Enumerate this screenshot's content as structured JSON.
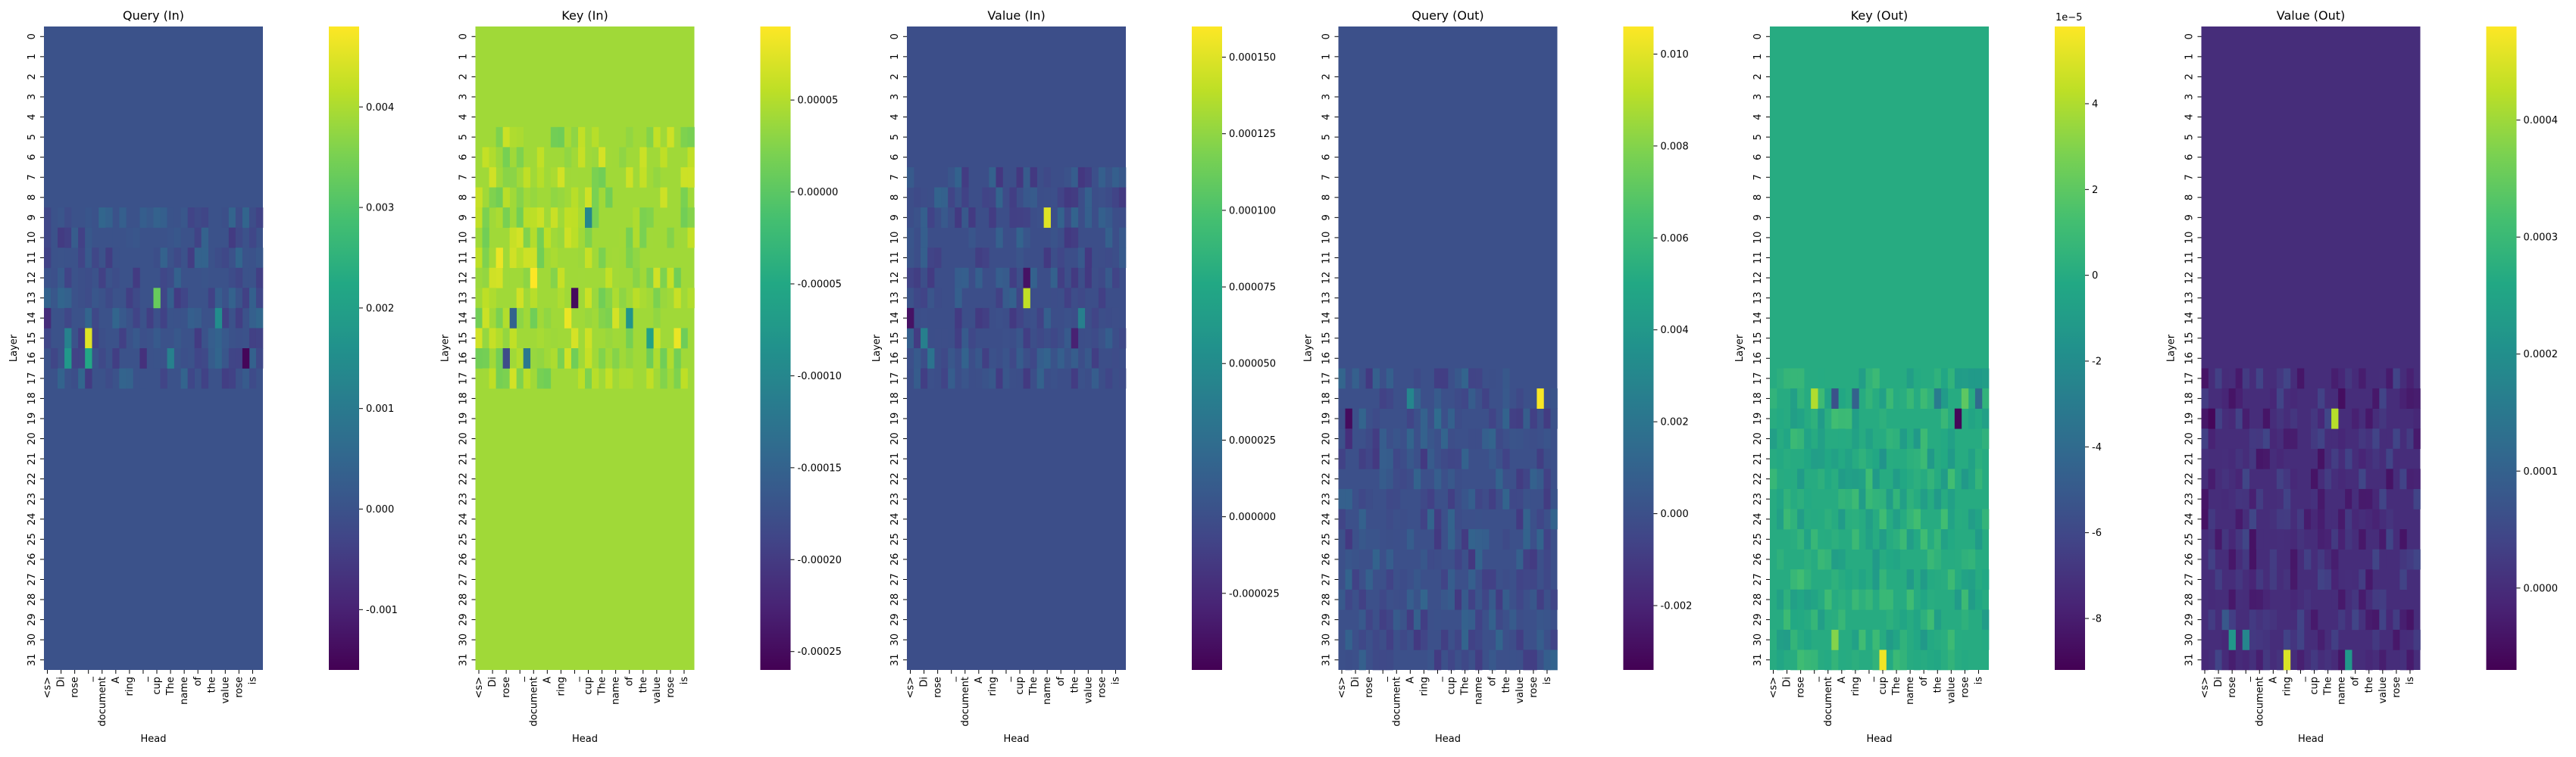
{
  "chart_data": [
    {
      "type": "heatmap",
      "title": "Query (In)",
      "xlabel": "Head",
      "ylabel": "Layer",
      "x_tick_labels": [
        "<s>",
        "Di",
        "rose",
        "_",
        "document",
        "A",
        "ring",
        "_",
        "cup",
        "The",
        "name",
        "of",
        "the",
        "value",
        "rose",
        "is"
      ],
      "y_tick_labels": [
        "0",
        "1",
        "2",
        "3",
        "4",
        "5",
        "6",
        "7",
        "8",
        "9",
        "10",
        "11",
        "12",
        "13",
        "14",
        "15",
        "16",
        "17",
        "18",
        "19",
        "20",
        "21",
        "22",
        "23",
        "24",
        "25",
        "26",
        "27",
        "28",
        "29",
        "30",
        "31"
      ],
      "colorbar": {
        "colormap": "viridis",
        "vmin": -0.0016,
        "vmax": 0.0048,
        "ticks": [
          "-0.001",
          "0.000",
          "0.001",
          "0.002",
          "0.003",
          "0.004"
        ],
        "tick_values": [
          -0.001,
          0,
          0.001,
          0.002,
          0.003,
          0.004
        ],
        "offset_text": ""
      },
      "background_value": 0.0,
      "highlights": [
        {
          "layer": 15,
          "pos": 6,
          "value": 0.0045
        },
        {
          "layer": 16,
          "pos": 6,
          "value": 0.0022
        },
        {
          "layer": 15,
          "pos": 3,
          "value": 0.0012
        },
        {
          "layer": 16,
          "pos": 3,
          "value": 0.0018
        },
        {
          "layer": 13,
          "pos": 16,
          "value": 0.0033
        },
        {
          "layer": 14,
          "pos": 25,
          "value": 0.0015
        },
        {
          "layer": 16,
          "pos": 18,
          "value": 0.0012
        },
        {
          "layer": 16,
          "pos": 29,
          "value": -0.0015
        },
        {
          "layer": 14,
          "pos": 0,
          "value": -0.0008
        },
        {
          "layer": 16,
          "pos": 14,
          "value": -0.0007
        }
      ]
    },
    {
      "type": "heatmap",
      "title": "Key (In)",
      "xlabel": "Head",
      "ylabel": "Layer",
      "x_tick_labels": [
        "<s>",
        "Di",
        "rose",
        "_",
        "document",
        "A",
        "ring",
        "_",
        "cup",
        "The",
        "name",
        "of",
        "the",
        "value",
        "rose",
        "is"
      ],
      "y_tick_labels": [
        "0",
        "1",
        "2",
        "3",
        "4",
        "5",
        "6",
        "7",
        "8",
        "9",
        "10",
        "11",
        "12",
        "13",
        "14",
        "15",
        "16",
        "17",
        "18",
        "19",
        "20",
        "21",
        "22",
        "23",
        "24",
        "25",
        "26",
        "27",
        "28",
        "29",
        "30",
        "31"
      ],
      "colorbar": {
        "colormap": "viridis",
        "vmin": -0.00026,
        "vmax": 9e-05,
        "ticks": [
          "-0.00025",
          "-0.00020",
          "-0.00015",
          "-0.00010",
          "-0.00005",
          "0.00000",
          "0.00005"
        ],
        "tick_values": [
          -0.00025,
          -0.0002,
          -0.00015,
          -0.0001,
          -5e-05,
          0,
          5e-05
        ],
        "offset_text": ""
      },
      "background_value": 4e-05,
      "highlights": [
        {
          "layer": 12,
          "pos": 8,
          "value": 9e-05
        },
        {
          "layer": 11,
          "pos": 3,
          "value": 8e-05
        },
        {
          "layer": 14,
          "pos": 13,
          "value": 8e-05
        },
        {
          "layer": 15,
          "pos": 29,
          "value": 8e-05
        },
        {
          "layer": 13,
          "pos": 14,
          "value": -0.00025
        },
        {
          "layer": 16,
          "pos": 4,
          "value": -0.00018
        },
        {
          "layer": 16,
          "pos": 7,
          "value": -0.00012
        },
        {
          "layer": 14,
          "pos": 5,
          "value": -0.00015
        },
        {
          "layer": 9,
          "pos": 16,
          "value": -0.0001
        },
        {
          "layer": 14,
          "pos": 22,
          "value": -8e-05
        },
        {
          "layer": 15,
          "pos": 25,
          "value": -6e-05
        }
      ]
    },
    {
      "type": "heatmap",
      "title": "Value (In)",
      "xlabel": "Head",
      "ylabel": "Layer",
      "x_tick_labels": [
        "<s>",
        "Di",
        "rose",
        "_",
        "document",
        "A",
        "ring",
        "_",
        "cup",
        "The",
        "name",
        "of",
        "the",
        "value",
        "rose",
        "is"
      ],
      "y_tick_labels": [
        "0",
        "1",
        "2",
        "3",
        "4",
        "5",
        "6",
        "7",
        "8",
        "9",
        "10",
        "11",
        "12",
        "13",
        "14",
        "15",
        "16",
        "17",
        "18",
        "19",
        "20",
        "21",
        "22",
        "23",
        "24",
        "25",
        "26",
        "27",
        "28",
        "29",
        "30",
        "31"
      ],
      "colorbar": {
        "colormap": "viridis",
        "vmin": -5e-05,
        "vmax": 0.00016,
        "ticks": [
          "-0.000025",
          "0.000000",
          "0.000025",
          "0.000050",
          "0.000075",
          "0.000100",
          "0.000125",
          "0.000150"
        ],
        "tick_values": [
          -2.5e-05,
          0,
          2.5e-05,
          5e-05,
          7.5e-05,
          0.0001,
          0.000125,
          0.00015
        ],
        "offset_text": ""
      },
      "background_value": 0.0,
      "highlights": [
        {
          "layer": 9,
          "pos": 20,
          "value": 0.00015
        },
        {
          "layer": 13,
          "pos": 17,
          "value": 0.00014
        },
        {
          "layer": 12,
          "pos": 17,
          "value": -4e-05
        },
        {
          "layer": 14,
          "pos": 0,
          "value": -4e-05
        },
        {
          "layer": 15,
          "pos": 24,
          "value": -3e-05
        },
        {
          "layer": 15,
          "pos": 2,
          "value": 4e-05
        },
        {
          "layer": 16,
          "pos": 3,
          "value": 3e-05
        },
        {
          "layer": 14,
          "pos": 25,
          "value": 4e-05
        }
      ]
    },
    {
      "type": "heatmap",
      "title": "Query (Out)",
      "xlabel": "Head",
      "ylabel": "Layer",
      "x_tick_labels": [
        "<s>",
        "Di",
        "rose",
        "_",
        "document",
        "A",
        "ring",
        "_",
        "cup",
        "The",
        "name",
        "of",
        "the",
        "value",
        "rose",
        "is"
      ],
      "y_tick_labels": [
        "0",
        "1",
        "2",
        "3",
        "4",
        "5",
        "6",
        "7",
        "8",
        "9",
        "10",
        "11",
        "12",
        "13",
        "14",
        "15",
        "16",
        "17",
        "18",
        "19",
        "20",
        "21",
        "22",
        "23",
        "24",
        "25",
        "26",
        "27",
        "28",
        "29",
        "30",
        "31"
      ],
      "colorbar": {
        "colormap": "viridis",
        "vmin": -0.0034,
        "vmax": 0.0106,
        "ticks": [
          "-0.002",
          "0.000",
          "0.002",
          "0.004",
          "0.006",
          "0.008",
          "0.010"
        ],
        "tick_values": [
          -0.002,
          0,
          0.002,
          0.004,
          0.006,
          0.008,
          0.01
        ],
        "offset_text": ""
      },
      "background_value": 0.0,
      "highlights": [
        {
          "layer": 18,
          "pos": 29,
          "value": 0.0105
        },
        {
          "layer": 19,
          "pos": 1,
          "value": -0.003
        },
        {
          "layer": 20,
          "pos": 1,
          "value": -0.0015
        },
        {
          "layer": 18,
          "pos": 10,
          "value": 0.003
        },
        {
          "layer": 19,
          "pos": 14,
          "value": 0.0015
        }
      ]
    },
    {
      "type": "heatmap",
      "title": "Key (Out)",
      "xlabel": "Head",
      "ylabel": "Layer",
      "x_tick_labels": [
        "<s>",
        "Di",
        "rose",
        "_",
        "document",
        "A",
        "ring",
        "_",
        "cup",
        "The",
        "name",
        "of",
        "the",
        "value",
        "rose",
        "is"
      ],
      "y_tick_labels": [
        "0",
        "1",
        "2",
        "3",
        "4",
        "5",
        "6",
        "7",
        "8",
        "9",
        "10",
        "11",
        "12",
        "13",
        "14",
        "15",
        "16",
        "17",
        "18",
        "19",
        "20",
        "21",
        "22",
        "23",
        "24",
        "25",
        "26",
        "27",
        "28",
        "29",
        "30",
        "31"
      ],
      "colorbar": {
        "colormap": "viridis",
        "vmin": -9.2,
        "vmax": 5.8,
        "ticks": [
          "-8",
          "-6",
          "-4",
          "-2",
          "0",
          "2",
          "4"
        ],
        "tick_values": [
          -8,
          -6,
          -4,
          -2,
          0,
          2,
          4
        ],
        "offset_text": "1e−5"
      },
      "background_value": 0.0,
      "highlights": [
        {
          "layer": 18,
          "pos": 6,
          "value": 4.0
        },
        {
          "layer": 18,
          "pos": 9,
          "value": -5.5
        },
        {
          "layer": 18,
          "pos": 12,
          "value": -4.5
        },
        {
          "layer": 18,
          "pos": 24,
          "value": -3.0
        },
        {
          "layer": 18,
          "pos": 28,
          "value": 2.0
        },
        {
          "layer": 18,
          "pos": 30,
          "value": -4.0
        },
        {
          "layer": 19,
          "pos": 27,
          "value": -9.0
        },
        {
          "layer": 30,
          "pos": 9,
          "value": 3.0
        },
        {
          "layer": 31,
          "pos": 16,
          "value": 5.5
        },
        {
          "layer": 21,
          "pos": 16,
          "value": -1.5
        }
      ]
    },
    {
      "type": "heatmap",
      "title": "Value (Out)",
      "xlabel": "Head",
      "ylabel": "Layer",
      "x_tick_labels": [
        "<s>",
        "Di",
        "rose",
        "_",
        "document",
        "A",
        "ring",
        "_",
        "cup",
        "The",
        "name",
        "of",
        "the",
        "value",
        "rose",
        "is"
      ],
      "y_tick_labels": [
        "0",
        "1",
        "2",
        "3",
        "4",
        "5",
        "6",
        "7",
        "8",
        "9",
        "10",
        "11",
        "12",
        "13",
        "14",
        "15",
        "16",
        "17",
        "18",
        "19",
        "20",
        "21",
        "22",
        "23",
        "24",
        "25",
        "26",
        "27",
        "28",
        "29",
        "30",
        "31"
      ],
      "colorbar": {
        "colormap": "viridis",
        "vmin": -7e-05,
        "vmax": 0.00048,
        "ticks": [
          "0.0000",
          "0.0001",
          "0.0002",
          "0.0003",
          "0.0004"
        ],
        "tick_values": [
          0,
          0.0001,
          0.0002,
          0.0003,
          0.0004
        ],
        "offset_text": ""
      },
      "background_value": 0.0,
      "highlights": [
        {
          "layer": 31,
          "pos": 12,
          "value": 0.00045
        },
        {
          "layer": 19,
          "pos": 19,
          "value": 0.00042
        },
        {
          "layer": 30,
          "pos": 4,
          "value": 0.00022
        },
        {
          "layer": 30,
          "pos": 6,
          "value": 0.00018
        },
        {
          "layer": 31,
          "pos": 21,
          "value": 0.00022
        },
        {
          "layer": 19,
          "pos": 1,
          "value": -6e-05
        },
        {
          "layer": 18,
          "pos": 20,
          "value": -5e-05
        },
        {
          "layer": 29,
          "pos": 3,
          "value": 8e-05
        }
      ]
    }
  ]
}
